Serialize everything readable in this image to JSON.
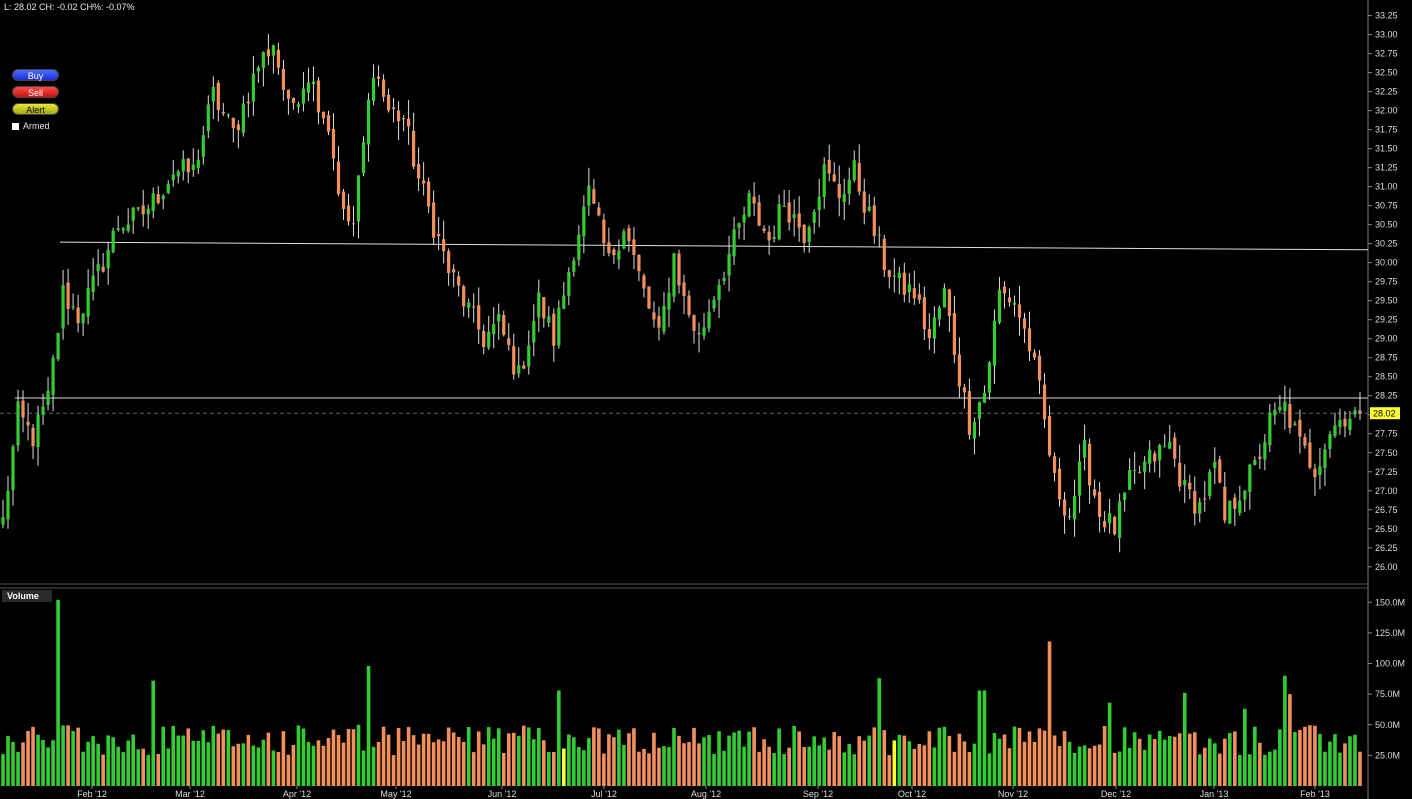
{
  "status_line": "L: 28.02 CH: -0.02 CH%: -0.07%",
  "buttons": {
    "buy": "Buy",
    "sell": "Sell",
    "alert": "Alert"
  },
  "armed_label": "Armed",
  "volume_panel_label": "Volume",
  "last_price_badge": "28.02",
  "colors": {
    "up": "#33cc33",
    "down": "#f2905b",
    "volume_highlight": "#ffff33",
    "last_badge": "#ffff33",
    "background": "#000000"
  },
  "chart_data": {
    "type": "candlestick",
    "x_tick_labels": [
      "Feb '12",
      "Mar '12",
      "Apr '12",
      "May '12",
      "Jun '12",
      "Jul '12",
      "Aug '12",
      "Sep '12",
      "Oct '12",
      "Nov '12",
      "Dec '12",
      "Jan '13",
      "Feb '13"
    ],
    "price_axis": {
      "ylim": [
        25.8,
        33.35
      ],
      "ticks": [
        "26.00",
        "26.25",
        "26.50",
        "26.75",
        "27.00",
        "27.25",
        "27.50",
        "27.75",
        "28.00",
        "28.25",
        "28.50",
        "28.75",
        "29.00",
        "29.25",
        "29.50",
        "29.75",
        "30.00",
        "30.25",
        "30.50",
        "30.75",
        "31.00",
        "31.25",
        "31.50",
        "31.75",
        "32.00",
        "32.25",
        "32.50",
        "32.75",
        "33.00",
        "33.25"
      ]
    },
    "volume_axis": {
      "ylim": [
        0,
        160
      ],
      "ticks": [
        "25.0M",
        "50.0M",
        "75.0M",
        "100.0M",
        "125.0M",
        "150.0M"
      ]
    },
    "last_price": 28.02,
    "trendlines": [
      {
        "from": [
          "2012-01-13",
          30.27
        ],
        "to": [
          "2013-02-22",
          30.17
        ]
      },
      {
        "from": [
          "2012-01-13",
          28.22
        ],
        "to": [
          "2013-02-22",
          28.22
        ]
      }
    ],
    "price_path": [
      [
        0,
        26.6
      ],
      [
        3,
        28.0
      ],
      [
        6,
        27.7
      ],
      [
        9,
        28.2
      ],
      [
        12,
        29.6
      ],
      [
        15,
        29.3
      ],
      [
        18,
        29.7
      ],
      [
        23,
        30.5
      ],
      [
        27,
        30.6
      ],
      [
        30,
        30.8
      ],
      [
        34,
        31.2
      ],
      [
        38,
        31.2
      ],
      [
        42,
        32.2
      ],
      [
        46,
        31.7
      ],
      [
        51,
        32.6
      ],
      [
        54,
        32.9
      ],
      [
        57,
        32.0
      ],
      [
        61,
        32.5
      ],
      [
        65,
        31.8
      ],
      [
        68,
        30.6
      ],
      [
        70,
        30.5
      ],
      [
        74,
        32.6
      ],
      [
        77,
        32.0
      ],
      [
        80,
        31.9
      ],
      [
        83,
        31.1
      ],
      [
        87,
        30.3
      ],
      [
        89,
        29.9
      ],
      [
        92,
        29.5
      ],
      [
        96,
        29.0
      ],
      [
        99,
        29.2
      ],
      [
        103,
        28.5
      ],
      [
        107,
        29.5
      ],
      [
        110,
        29.0
      ],
      [
        114,
        30.2
      ],
      [
        117,
        30.9
      ],
      [
        121,
        30.0
      ],
      [
        124,
        30.5
      ],
      [
        128,
        29.6
      ],
      [
        131,
        29.0
      ],
      [
        134,
        30.1
      ],
      [
        136,
        29.5
      ],
      [
        139,
        29.0
      ],
      [
        142,
        29.6
      ],
      [
        145,
        30.1
      ],
      [
        149,
        30.8
      ],
      [
        153,
        30.3
      ],
      [
        156,
        30.8
      ],
      [
        160,
        30.4
      ],
      [
        164,
        31.2
      ],
      [
        167,
        30.9
      ],
      [
        170,
        31.2
      ],
      [
        173,
        30.6
      ],
      [
        176,
        30.0
      ],
      [
        179,
        29.7
      ],
      [
        182,
        29.6
      ],
      [
        185,
        29.0
      ],
      [
        188,
        29.6
      ],
      [
        191,
        28.5
      ],
      [
        193,
        27.9
      ],
      [
        196,
        28.3
      ],
      [
        199,
        29.6
      ],
      [
        202,
        29.5
      ],
      [
        205,
        28.9
      ],
      [
        207,
        28.3
      ],
      [
        210,
        27.1
      ],
      [
        213,
        26.7
      ],
      [
        216,
        27.5
      ],
      [
        219,
        26.7
      ],
      [
        222,
        26.5
      ],
      [
        225,
        27.1
      ],
      [
        229,
        27.4
      ],
      [
        233,
        27.6
      ],
      [
        236,
        27.0
      ],
      [
        239,
        26.8
      ],
      [
        242,
        27.3
      ],
      [
        244,
        26.6
      ],
      [
        247,
        27.0
      ],
      [
        250,
        27.3
      ],
      [
        253,
        27.9
      ],
      [
        256,
        28.1
      ],
      [
        259,
        27.6
      ],
      [
        262,
        27.3
      ],
      [
        265,
        27.8
      ],
      [
        268,
        28.0
      ],
      [
        271,
        28.02
      ]
    ],
    "volume_spikes": {
      "11": 152,
      "30": 86,
      "73": 98,
      "111": 78,
      "175": 88,
      "195": 78,
      "196": 78,
      "209": 118,
      "221": 68,
      "236": 76,
      "248": 63,
      "256": 90,
      "257": 75
    },
    "volume_highlight_bars": [
      112,
      178
    ]
  }
}
